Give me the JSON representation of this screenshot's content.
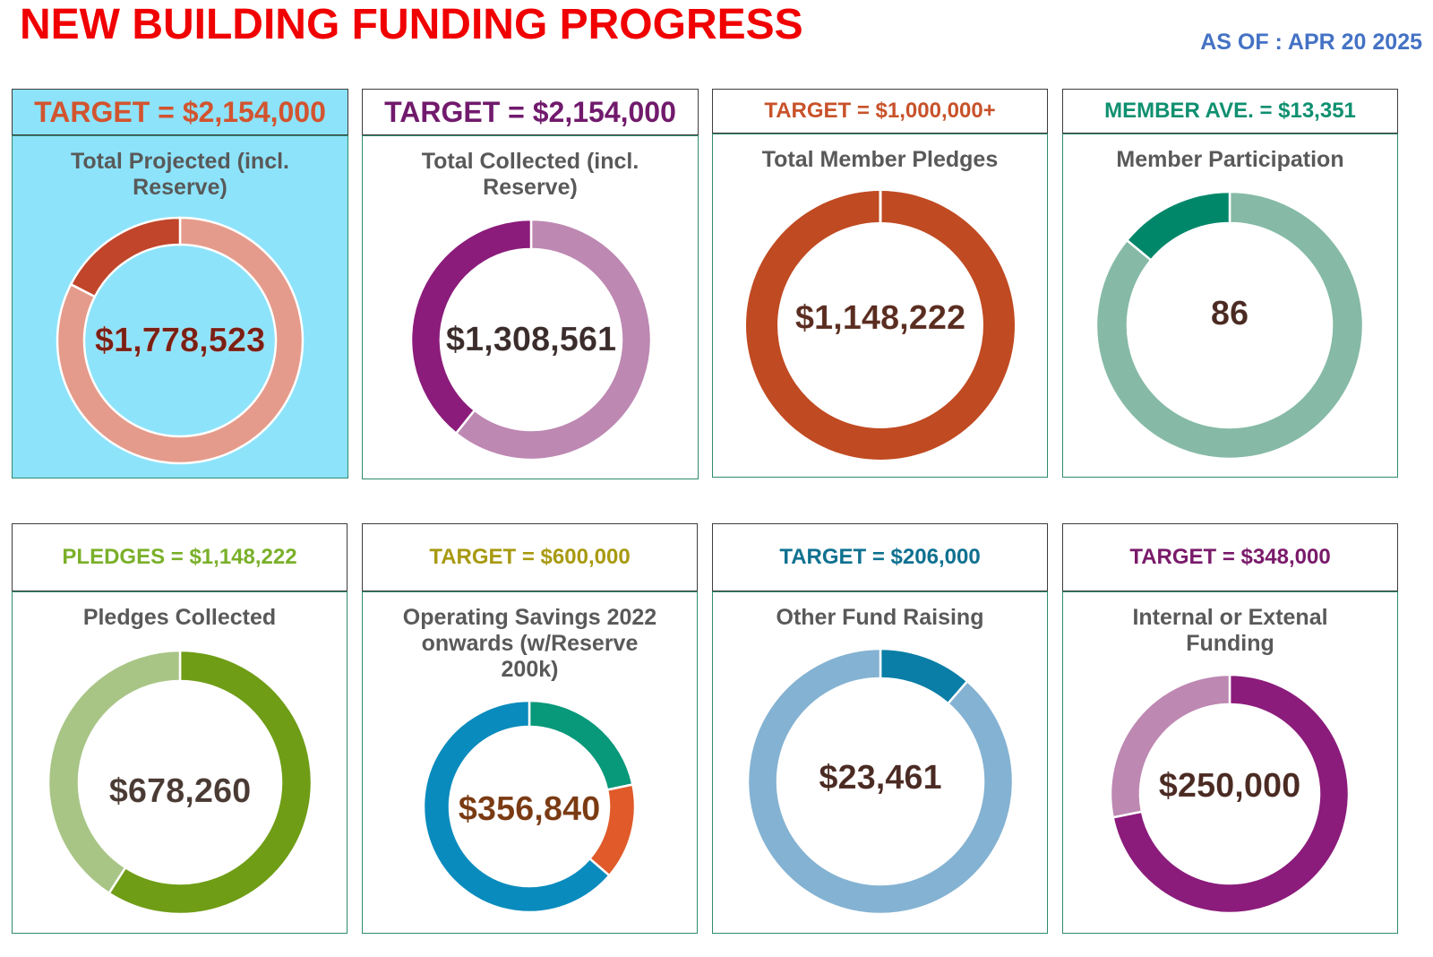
{
  "title": "NEW BUILDING FUNDING PROGRESS",
  "as_of": "AS OF : APR 20 2025",
  "chart_data": [
    {
      "type": "pie",
      "header": "TARGET = $2,154,000",
      "title": "Total Projected (incl. Reserve)",
      "center_label": "$1,778,523",
      "values": [
        1778523,
        375477
      ],
      "colors": [
        "#e59b8b",
        "#c0452a"
      ],
      "header_color": "#d2542f",
      "center_color": "#7a1f14",
      "background": "#8de3fa"
    },
    {
      "type": "pie",
      "header": "TARGET = $2,154,000",
      "title": "Total Collected (incl. Reserve)",
      "center_label": "$1,308,561",
      "values": [
        1308561,
        845439
      ],
      "colors": [
        "#bd88b2",
        "#8b1c7b"
      ],
      "header_color": "#711a6d",
      "center_color": "#3a2c2a"
    },
    {
      "type": "pie",
      "header": "TARGET = $1,000,000+",
      "title": "Total Member Pledges",
      "center_label": "$1,148,222",
      "values": [
        1148222
      ],
      "colors": [
        "#c04a22"
      ],
      "header_color": "#c8522a",
      "center_color": "#5a2d20"
    },
    {
      "type": "pie",
      "header": "MEMBER AVE. = $13,351",
      "title": "Member Participation",
      "center_label": "86",
      "values": [
        86,
        14
      ],
      "colors": [
        "#86baa6",
        "#00876a"
      ],
      "header_color": "#0f9070",
      "center_color": "#4a2a22"
    },
    {
      "type": "pie",
      "header": "PLEDGES = $1,148,222",
      "title": "Pledges Collected",
      "center_label": "$678,260",
      "values": [
        678260,
        469962
      ],
      "colors": [
        "#6f9d16",
        "#a8c586"
      ],
      "header_color": "#7ab02a",
      "center_color": "#4a3a34"
    },
    {
      "type": "pie",
      "header": "TARGET = $600,000",
      "title": "Operating Savings 2022 onwards (w/Reserve 200k)",
      "center_label": "$356,840",
      "values": [
        130000,
        88000,
        382000
      ],
      "colors": [
        "#08987a",
        "#e05a2a",
        "#0a8bbd"
      ],
      "header_color": "#a89a12",
      "center_color": "#7a3a12"
    },
    {
      "type": "pie",
      "header": "TARGET = $206,000",
      "title": "Other Fund Raising",
      "center_label": "$23,461",
      "values": [
        23461,
        182539
      ],
      "colors": [
        "#0a7ea6",
        "#84b2d2"
      ],
      "header_color": "#0f7190",
      "center_color": "#4a2a22"
    },
    {
      "type": "pie",
      "header": "TARGET = $348,000",
      "title": "Internal or Extenal Funding",
      "center_label": "$250,000",
      "values": [
        250000,
        98000
      ],
      "colors": [
        "#8b1c7b",
        "#bd88b2"
      ],
      "header_color": "#7a1a6a",
      "center_color": "#4a2a22"
    }
  ]
}
